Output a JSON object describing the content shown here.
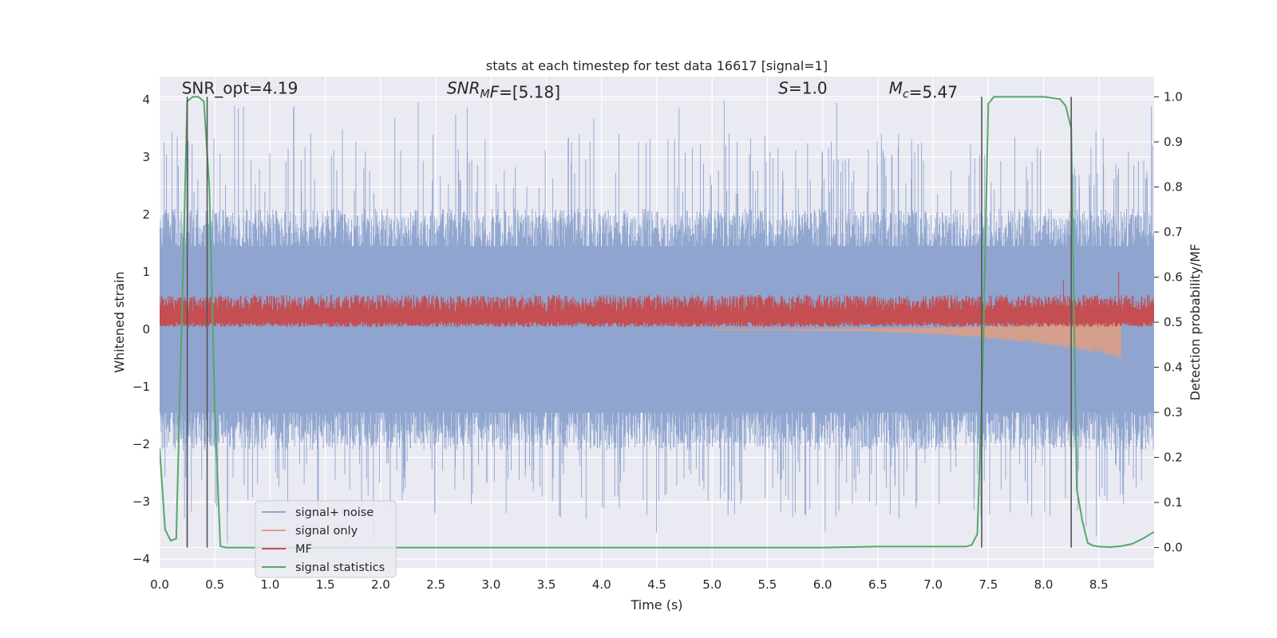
{
  "chart_data": {
    "type": "line",
    "title": "stats at each timestep for test data 16617 [signal=1]",
    "xlabel": "Time (s)",
    "ylabel": "Whitened strain",
    "y2label": "Detection probability/MF",
    "xlim": [
      0.0,
      9.0
    ],
    "ylim": [
      -4.15,
      4.4
    ],
    "y2lim": [
      -0.045,
      1.045
    ],
    "xticks": [
      "0.0",
      "0.5",
      "1.0",
      "1.5",
      "2.0",
      "2.5",
      "3.0",
      "3.5",
      "4.0",
      "4.5",
      "5.0",
      "5.5",
      "6.0",
      "6.5",
      "7.0",
      "7.5",
      "8.0",
      "8.5"
    ],
    "yticks": [
      "−4",
      "−3",
      "−2",
      "−1",
      "0",
      "1",
      "2",
      "3",
      "4"
    ],
    "y2ticks": [
      "0.0",
      "0.1",
      "0.2",
      "0.3",
      "0.4",
      "0.5",
      "0.6",
      "0.7",
      "0.8",
      "0.9",
      "1.0"
    ],
    "grid": true,
    "legend_position": "lower-left",
    "annotations": [
      {
        "text": "SNR_opt=4.19",
        "x": 0.2,
        "y": 4.1
      },
      {
        "text": "SNR_MF=[5.18]",
        "x": 2.6,
        "y": 4.1
      },
      {
        "text": "S=1.0",
        "x": 5.6,
        "y": 4.1
      },
      {
        "text": "M_c=5.47",
        "x": 6.6,
        "y": 4.1
      }
    ],
    "vlines": [
      0.25,
      0.43,
      7.44,
      8.25
    ],
    "series": [
      {
        "name": "signal+ noise",
        "color": "#8fa5cf",
        "kind": "noise",
        "envelope_upper_typical": 2.1,
        "envelope_lower_typical": -2.1,
        "max": 4.0,
        "min": -3.8
      },
      {
        "name": "signal only",
        "color": "#dd9f85",
        "kind": "chirp",
        "start": 5.0,
        "end": 8.7,
        "peak_amplitude": 0.5
      },
      {
        "name": "MF",
        "color": "#c44e52",
        "kind": "matched-filter",
        "baseline": 0.18,
        "typical_max": 0.6,
        "spikes": [
          {
            "x": 8.18,
            "y": 0.85
          },
          {
            "x": 8.68,
            "y": 1.0
          }
        ]
      },
      {
        "name": "signal statistics",
        "color": "#55a868",
        "kind": "probability",
        "axis": "right",
        "x": [
          0.0,
          0.05,
          0.1,
          0.15,
          0.2,
          0.25,
          0.3,
          0.35,
          0.4,
          0.45,
          0.5,
          0.55,
          0.6,
          1.0,
          2.0,
          3.0,
          4.0,
          5.0,
          6.0,
          6.5,
          7.0,
          7.3,
          7.35,
          7.4,
          7.45,
          7.5,
          7.55,
          7.6,
          8.0,
          8.15,
          8.2,
          8.25,
          8.3,
          8.35,
          8.4,
          8.45,
          8.5,
          8.6,
          8.7,
          8.8,
          8.9,
          9.0
        ],
        "y": [
          0.22,
          0.04,
          0.015,
          0.02,
          0.5,
          0.99,
          1.0,
          1.0,
          0.99,
          0.8,
          0.3,
          0.003,
          0.0,
          0.0,
          0.0,
          0.0,
          0.0,
          0.0,
          0.0,
          0.002,
          0.002,
          0.002,
          0.006,
          0.03,
          0.4,
          0.985,
          1.0,
          1.0,
          1.0,
          0.995,
          0.98,
          0.93,
          0.13,
          0.06,
          0.01,
          0.004,
          0.002,
          0.001,
          0.003,
          0.008,
          0.02,
          0.035
        ]
      }
    ]
  }
}
